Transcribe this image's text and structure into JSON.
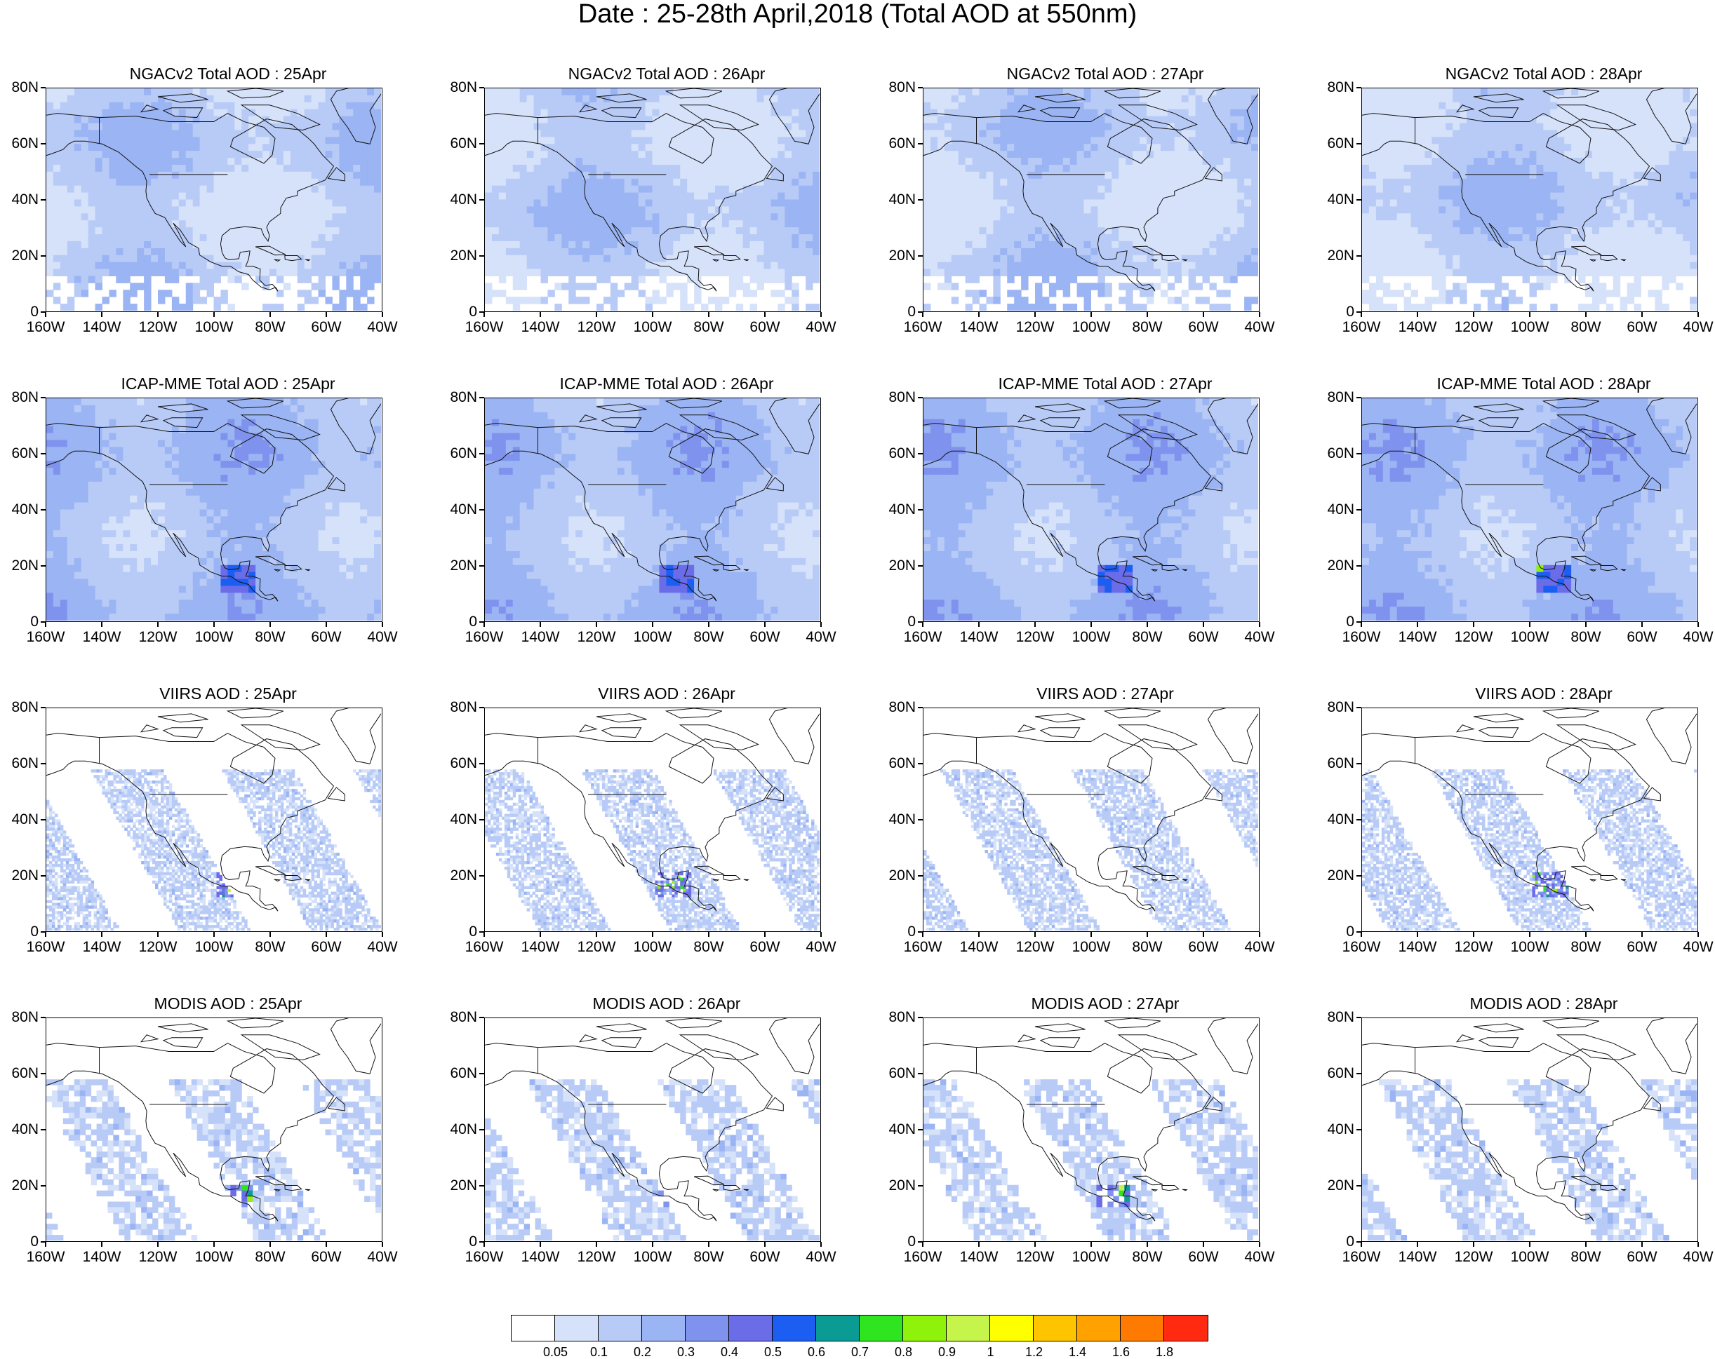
{
  "title": "Date : 25-28th April,2018 (Total AOD at 550nm)",
  "lat_ticks": [
    "80N",
    "60N",
    "40N",
    "20N",
    "0"
  ],
  "lon_ticks": [
    "160W",
    "140W",
    "120W",
    "100W",
    "80W",
    "60W",
    "40W"
  ],
  "colorbar": {
    "colors": [
      "#ffffff",
      "#d6e2fa",
      "#b8cbf7",
      "#9bb4f3",
      "#7f93ee",
      "#6a6ce8",
      "#1d5ef2",
      "#0a9b95",
      "#2ee51f",
      "#8ff20a",
      "#c5f54a",
      "#ffff00",
      "#ffc400",
      "#ffa200",
      "#ff7a00",
      "#ff2a10"
    ],
    "labels": [
      "0.05",
      "0.1",
      "0.2",
      "0.3",
      "0.4",
      "0.5",
      "0.6",
      "0.7",
      "0.8",
      "0.9",
      "1",
      "1.2",
      "1.4",
      "1.6",
      "1.8"
    ]
  },
  "panels": [
    {
      "title": "NGACv2 Total AOD : 25Apr",
      "kind": "model"
    },
    {
      "title": "NGACv2 Total AOD : 26Apr",
      "kind": "model"
    },
    {
      "title": "NGACv2 Total AOD : 27Apr",
      "kind": "model"
    },
    {
      "title": "NGACv2 Total AOD : 28Apr",
      "kind": "model"
    },
    {
      "title": "ICAP-MME Total AOD : 25Apr",
      "kind": "ensemble"
    },
    {
      "title": "ICAP-MME Total AOD : 26Apr",
      "kind": "ensemble"
    },
    {
      "title": "ICAP-MME Total AOD : 27Apr",
      "kind": "ensemble"
    },
    {
      "title": "ICAP-MME Total AOD : 28Apr",
      "kind": "ensemble"
    },
    {
      "title": "VIIRS AOD : 25Apr",
      "kind": "satellite"
    },
    {
      "title": "VIIRS AOD : 26Apr",
      "kind": "satellite"
    },
    {
      "title": "VIIRS AOD : 27Apr",
      "kind": "satellite"
    },
    {
      "title": "VIIRS AOD : 28Apr",
      "kind": "satellite"
    },
    {
      "title": "MODIS AOD : 25Apr",
      "kind": "satellite-coarse"
    },
    {
      "title": "MODIS AOD : 26Apr",
      "kind": "satellite-coarse"
    },
    {
      "title": "MODIS AOD : 27Apr",
      "kind": "satellite-coarse"
    },
    {
      "title": "MODIS AOD : 28Apr",
      "kind": "satellite-coarse"
    }
  ]
}
